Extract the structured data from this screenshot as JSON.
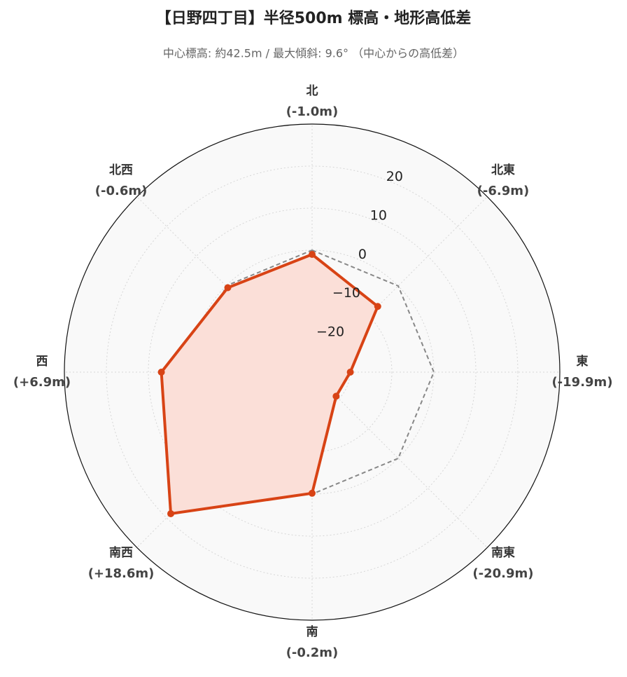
{
  "chart_data": {
    "type": "radar",
    "title": "【日野四丁目】半径500m 標高・地形高低差",
    "subtitle": "中心標高: 約42.5m / 最大傾斜: 9.6° （中心からの高低差）",
    "categories": [
      "北",
      "北東",
      "東",
      "南東",
      "南",
      "南西",
      "西",
      "北西"
    ],
    "values": [
      -1.0,
      -6.9,
      -19.9,
      -20.9,
      -0.2,
      18.6,
      6.9,
      -0.6
    ],
    "value_labels": [
      "(-1.0m)",
      "(-6.9m)",
      "(-19.9m)",
      "(-20.9m)",
      "(-0.2m)",
      "(+18.6m)",
      "(+6.9m)",
      "(-0.6m)"
    ],
    "color": "#d84315",
    "fill": "#fbdfd8",
    "reference_value": 0,
    "rlim": [
      -29,
      30
    ],
    "rticks": [
      {
        "value": -20,
        "label": "−20"
      },
      {
        "value": -10,
        "label": "−10"
      },
      0,
      10,
      20
    ],
    "grid": true
  }
}
